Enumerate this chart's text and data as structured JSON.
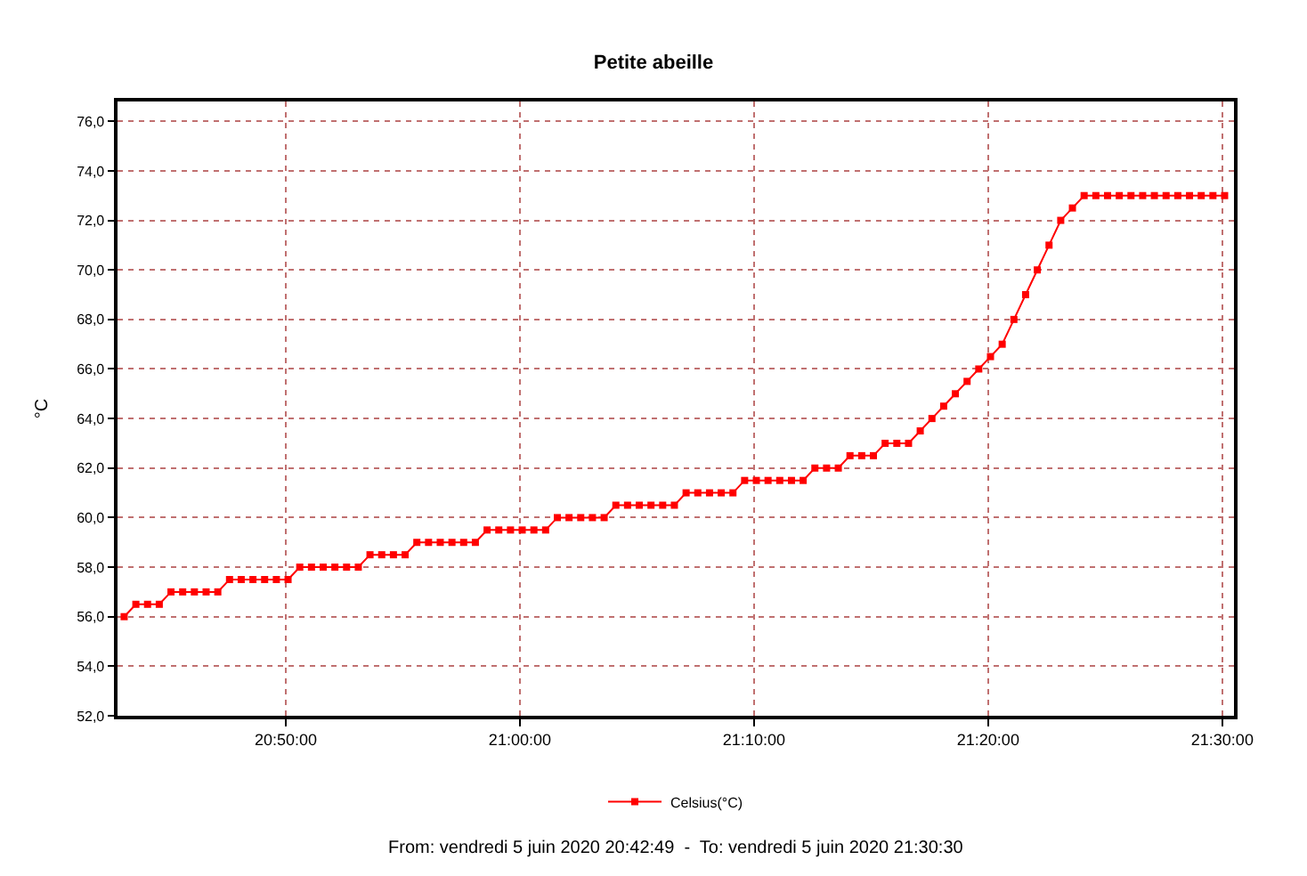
{
  "chart_data": {
    "type": "line",
    "title": "Petite abeille",
    "ylabel": "°C",
    "x": [
      "2020-06-05T20:43:06",
      "2020-06-05T20:43:36",
      "2020-06-05T20:44:06",
      "2020-06-05T20:44:36",
      "2020-06-05T20:45:06",
      "2020-06-05T20:45:36",
      "2020-06-05T20:46:06",
      "2020-06-05T20:46:36",
      "2020-06-05T20:47:06",
      "2020-06-05T20:47:36",
      "2020-06-05T20:48:06",
      "2020-06-05T20:48:36",
      "2020-06-05T20:49:06",
      "2020-06-05T20:49:36",
      "2020-06-05T20:50:06",
      "2020-06-05T20:50:36",
      "2020-06-05T20:51:06",
      "2020-06-05T20:51:36",
      "2020-06-05T20:52:06",
      "2020-06-05T20:52:36",
      "2020-06-05T20:53:06",
      "2020-06-05T20:53:36",
      "2020-06-05T20:54:06",
      "2020-06-05T20:54:36",
      "2020-06-05T20:55:06",
      "2020-06-05T20:55:36",
      "2020-06-05T20:56:06",
      "2020-06-05T20:56:36",
      "2020-06-05T20:57:06",
      "2020-06-05T20:57:36",
      "2020-06-05T20:58:06",
      "2020-06-05T20:58:36",
      "2020-06-05T20:59:06",
      "2020-06-05T20:59:36",
      "2020-06-05T21:00:06",
      "2020-06-05T21:00:36",
      "2020-06-05T21:01:06",
      "2020-06-05T21:01:36",
      "2020-06-05T21:02:06",
      "2020-06-05T21:02:36",
      "2020-06-05T21:03:06",
      "2020-06-05T21:03:36",
      "2020-06-05T21:04:06",
      "2020-06-05T21:04:36",
      "2020-06-05T21:05:06",
      "2020-06-05T21:05:36",
      "2020-06-05T21:06:06",
      "2020-06-05T21:06:36",
      "2020-06-05T21:07:06",
      "2020-06-05T21:07:36",
      "2020-06-05T21:08:06",
      "2020-06-05T21:08:36",
      "2020-06-05T21:09:06",
      "2020-06-05T21:09:36",
      "2020-06-05T21:10:06",
      "2020-06-05T21:10:36",
      "2020-06-05T21:11:06",
      "2020-06-05T21:11:36",
      "2020-06-05T21:12:06",
      "2020-06-05T21:12:36",
      "2020-06-05T21:13:06",
      "2020-06-05T21:13:36",
      "2020-06-05T21:14:06",
      "2020-06-05T21:14:36",
      "2020-06-05T21:15:06",
      "2020-06-05T21:15:36",
      "2020-06-05T21:16:06",
      "2020-06-05T21:16:36",
      "2020-06-05T21:17:06",
      "2020-06-05T21:17:36",
      "2020-06-05T21:18:06",
      "2020-06-05T21:18:36",
      "2020-06-05T21:19:06",
      "2020-06-05T21:19:36",
      "2020-06-05T21:20:06",
      "2020-06-05T21:20:36",
      "2020-06-05T21:21:06",
      "2020-06-05T21:21:36",
      "2020-06-05T21:22:06",
      "2020-06-05T21:22:36",
      "2020-06-05T21:23:06",
      "2020-06-05T21:23:36",
      "2020-06-05T21:24:06",
      "2020-06-05T21:24:36",
      "2020-06-05T21:25:06",
      "2020-06-05T21:25:36",
      "2020-06-05T21:26:06",
      "2020-06-05T21:26:36",
      "2020-06-05T21:27:06",
      "2020-06-05T21:27:36",
      "2020-06-05T21:28:06",
      "2020-06-05T21:28:36",
      "2020-06-05T21:29:06",
      "2020-06-05T21:29:36",
      "2020-06-05T21:30:06"
    ],
    "series": [
      {
        "name": "Celsius(°C)",
        "color": "#ff0000",
        "values": [
          56,
          56.5,
          56.5,
          56.5,
          57,
          57,
          57,
          57,
          57,
          57.5,
          57.5,
          57.5,
          57.5,
          57.5,
          57.5,
          58,
          58,
          58,
          58,
          58,
          58,
          58.5,
          58.5,
          58.5,
          58.5,
          59,
          59,
          59,
          59,
          59,
          59,
          59.5,
          59.5,
          59.5,
          59.5,
          59.5,
          59.5,
          60,
          60,
          60,
          60,
          60,
          60.5,
          60.5,
          60.5,
          60.5,
          60.5,
          60.5,
          61,
          61,
          61,
          61,
          61,
          61.5,
          61.5,
          61.5,
          61.5,
          61.5,
          61.5,
          62,
          62,
          62,
          62.5,
          62.5,
          62.5,
          63,
          63,
          63,
          63.5,
          64,
          64.5,
          65,
          65.5,
          66,
          66.5,
          67,
          68,
          69,
          70,
          71,
          72,
          72.5,
          73,
          73,
          73,
          73,
          73,
          73,
          73,
          73,
          73,
          73,
          73,
          73,
          73
        ]
      }
    ],
    "xlim": [
      "2020-06-05T20:42:49",
      "2020-06-05T21:30:30"
    ],
    "xticks": [
      {
        "value": "2020-06-05T20:50:00",
        "label": "20:50:00"
      },
      {
        "value": "2020-06-05T21:00:00",
        "label": "21:00:00"
      },
      {
        "value": "2020-06-05T21:10:00",
        "label": "21:10:00"
      },
      {
        "value": "2020-06-05T21:20:00",
        "label": "21:20:00"
      },
      {
        "value": "2020-06-05T21:30:00",
        "label": "21:30:00"
      }
    ],
    "ylim": [
      52,
      76.8
    ],
    "yticks": [
      {
        "value": 52,
        "label": "52,0"
      },
      {
        "value": 54,
        "label": "54,0"
      },
      {
        "value": 56,
        "label": "56,0"
      },
      {
        "value": 58,
        "label": "58,0"
      },
      {
        "value": 60,
        "label": "60,0"
      },
      {
        "value": 62,
        "label": "62,0"
      },
      {
        "value": 64,
        "label": "64,0"
      },
      {
        "value": 66,
        "label": "66,0"
      },
      {
        "value": 68,
        "label": "68,0"
      },
      {
        "value": 70,
        "label": "70,0"
      },
      {
        "value": 72,
        "label": "72,0"
      },
      {
        "value": 74,
        "label": "74,0"
      },
      {
        "value": 76,
        "label": "76,0"
      }
    ],
    "grid": true,
    "legend": "bottom",
    "marker": "square",
    "line_style": "solid",
    "annotations": [
      "From: vendredi 5 juin 2020 20:42:49  -  To: vendredi 5 juin 2020 21:30:30"
    ]
  }
}
